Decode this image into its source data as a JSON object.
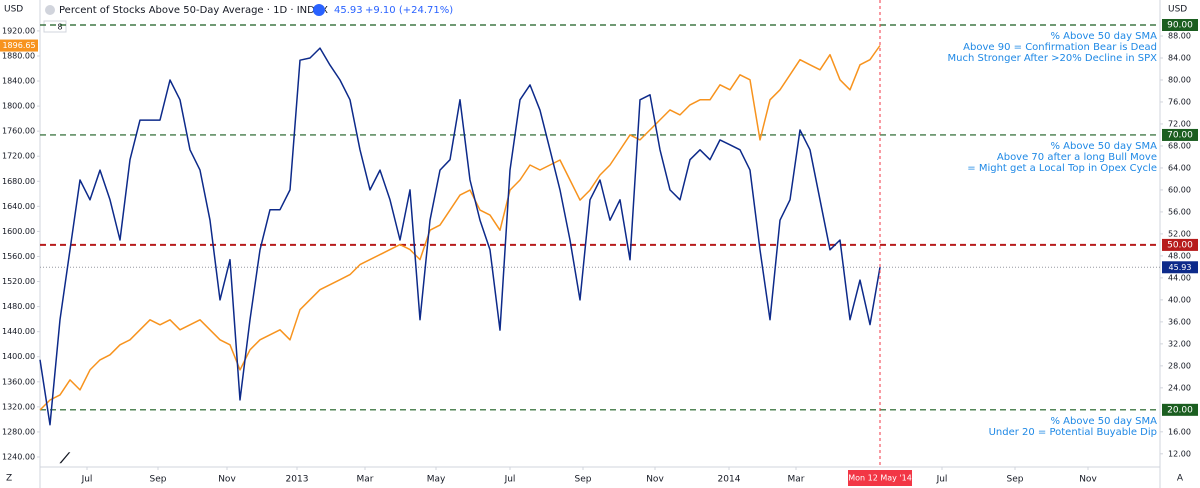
{
  "chart_data": {
    "type": "line",
    "header": {
      "currency_left": "USD",
      "currency_right": "USD",
      "title": "Percent of Stocks Above 50-Day Average · 1D · INDEX",
      "last": "45.93",
      "change": "+9.10 (+24.71%)",
      "indicator_count": "8"
    },
    "crosshair_label": "Mon 12 May '14",
    "corner_left": "Z",
    "corner_right": "A",
    "xlim": [
      0,
      112
    ],
    "xticks": [
      {
        "value": 4.7,
        "label": "Jul"
      },
      {
        "value": 11.8,
        "label": "Sep"
      },
      {
        "value": 18.7,
        "label": "Nov"
      },
      {
        "value": 25.7,
        "label": "2013"
      },
      {
        "value": 32.5,
        "label": "Mar"
      },
      {
        "value": 39.6,
        "label": "May"
      },
      {
        "value": 47,
        "label": "Jul"
      },
      {
        "value": 54.3,
        "label": "Sep"
      },
      {
        "value": 61.5,
        "label": "Nov"
      },
      {
        "value": 68.9,
        "label": "2014"
      },
      {
        "value": 75.6,
        "label": "Mar"
      },
      {
        "value": 90.2,
        "label": "Jul"
      },
      {
        "value": 97.5,
        "label": "Sep"
      },
      {
        "value": 104.8,
        "label": "Nov"
      }
    ],
    "ylim": [
      1224,
      1947
    ],
    "yticks": [
      {
        "value": 1240,
        "label": "1240.00"
      },
      {
        "value": 1280,
        "label": "1280.00"
      },
      {
        "value": 1320,
        "label": "1320.00"
      },
      {
        "value": 1360,
        "label": "1360.00"
      },
      {
        "value": 1400,
        "label": "1400.00"
      },
      {
        "value": 1440,
        "label": "1440.00"
      },
      {
        "value": 1480,
        "label": "1480.00"
      },
      {
        "value": 1520,
        "label": "1520.00"
      },
      {
        "value": 1560,
        "label": "1560.00"
      },
      {
        "value": 1600,
        "label": "1600.00"
      },
      {
        "value": 1640,
        "label": "1640.00"
      },
      {
        "value": 1680,
        "label": "1680.00"
      },
      {
        "value": 1720,
        "label": "1720.00"
      },
      {
        "value": 1760,
        "label": "1760.00"
      },
      {
        "value": 1800,
        "label": "1800.00"
      },
      {
        "value": 1840,
        "label": "1840.00"
      },
      {
        "value": 1880,
        "label": "1880.00"
      },
      {
        "value": 1920,
        "label": "1920.00"
      }
    ],
    "y2lim": [
      9.6,
      92
    ],
    "y2ticks": [
      {
        "value": 12,
        "label": "12.00"
      },
      {
        "value": 16,
        "label": "16.00"
      },
      {
        "value": 24,
        "label": "24.00"
      },
      {
        "value": 28,
        "label": "28.00"
      },
      {
        "value": 32,
        "label": "32.00"
      },
      {
        "value": 36,
        "label": "36.00"
      },
      {
        "value": 40,
        "label": "40.00"
      },
      {
        "value": 44,
        "label": "44.00"
      },
      {
        "value": 48,
        "label": "48.00"
      },
      {
        "value": 52,
        "label": "52.00"
      },
      {
        "value": 56,
        "label": "56.00"
      },
      {
        "value": 60,
        "label": "60.00"
      },
      {
        "value": 64,
        "label": "64.00"
      },
      {
        "value": 68,
        "label": "68.00"
      },
      {
        "value": 72,
        "label": "72.00"
      },
      {
        "value": 76,
        "label": "76.00"
      },
      {
        "value": 80,
        "label": "80.00"
      },
      {
        "value": 84,
        "label": "84.00"
      },
      {
        "value": 88,
        "label": "88.00"
      }
    ],
    "levels": [
      {
        "value": 90,
        "label": "90.00",
        "color": "#1b5e20"
      },
      {
        "value": 70,
        "label": "70.00",
        "color": "#1b5e20"
      },
      {
        "value": 50,
        "label": "50.00",
        "color": "#b71c1c"
      },
      {
        "value": 20,
        "label": "20.00",
        "color": "#1b5e20"
      }
    ],
    "annotations": [
      {
        "at": 90,
        "lines": [
          "% Above 50 day SMA",
          "Above 90 = Confirmation Bear is Dead",
          "Much Stronger After >20% Decline in SPX"
        ]
      },
      {
        "at": 70,
        "lines": [
          "% Above 50 day SMA",
          "Above 70 after a long Bull Move",
          "= Might get a Local Top in Opex Cycle"
        ]
      },
      {
        "at": 20,
        "lines": [
          "% Above 50 day SMA",
          "Under 20 = Potential Buyable Dip"
        ]
      }
    ],
    "series": [
      {
        "name": "Percent of Stocks Above 50-Day Average",
        "axis": "y2",
        "color": "#0d2a8a",
        "last_label": "45.93",
        "values": [
          29.1,
          17.3,
          36.4,
          49.1,
          61.8,
          58.2,
          63.6,
          58.2,
          50.9,
          65.5,
          72.7,
          72.7,
          72.7,
          80.0,
          76.4,
          67.3,
          63.6,
          54.5,
          40.0,
          47.3,
          21.8,
          36.4,
          49.1,
          56.4,
          56.4,
          60.0,
          83.6,
          84.0,
          85.8,
          82.7,
          80.0,
          76.4,
          67.3,
          60.0,
          63.6,
          58.2,
          50.9,
          60.0,
          36.4,
          54.5,
          63.6,
          65.5,
          76.4,
          61.8,
          54.5,
          49.1,
          34.5,
          63.6,
          76.4,
          79.1,
          74.5,
          67.3,
          60.0,
          50.9,
          40.0,
          58.2,
          61.8,
          54.5,
          58.2,
          47.3,
          76.4,
          77.3,
          67.3,
          60.0,
          58.2,
          65.5,
          67.3,
          65.5,
          69.1,
          68.2,
          67.3,
          63.6,
          49.1,
          36.4,
          54.5,
          58.2,
          70.9,
          67.3,
          58.2,
          49.1,
          50.9,
          36.4,
          43.6,
          35.5,
          45.93
        ]
      },
      {
        "axis": "y",
        "color": "#f7931e",
        "last_label": "1896.65",
        "values": [
          1315,
          1331,
          1339,
          1363,
          1347,
          1379,
          1395,
          1403,
          1419,
          1427,
          1443,
          1459,
          1451,
          1459,
          1443,
          1451,
          1459,
          1443,
          1427,
          1419,
          1379,
          1411,
          1427,
          1435,
          1443,
          1427,
          1475,
          1491,
          1507,
          1515,
          1523,
          1531,
          1547,
          1555,
          1563,
          1571,
          1579,
          1571,
          1555,
          1602,
          1610,
          1634,
          1658,
          1666,
          1634,
          1626,
          1602,
          1666,
          1682,
          1706,
          1698,
          1706,
          1714,
          1682,
          1650,
          1666,
          1690,
          1706,
          1730,
          1754,
          1746,
          1762,
          1778,
          1794,
          1786,
          1802,
          1810,
          1810,
          1834,
          1826,
          1850,
          1842,
          1746,
          1810,
          1826,
          1850,
          1874,
          1866,
          1858,
          1882,
          1842,
          1826,
          1866,
          1874,
          1896.65
        ]
      }
    ]
  }
}
